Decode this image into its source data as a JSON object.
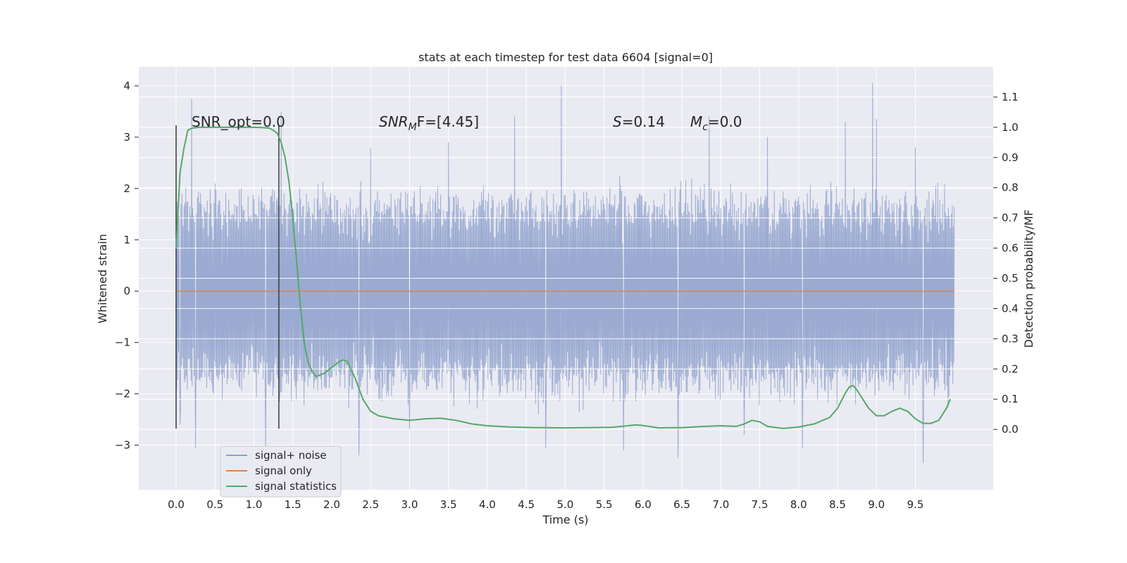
{
  "chart_data": {
    "type": "line",
    "title": "stats at each timestep for test data 6604 [signal=0]",
    "xlabel": "Time (s)",
    "ylabel_left": "Whitened strain",
    "ylabel_right": "Detection probability/MF",
    "xlim": [
      -0.48,
      10.5
    ],
    "ylim_left": [
      -3.87,
      4.37
    ],
    "ylim_right": [
      -0.2,
      1.2
    ],
    "x_ticks": [
      "0.0",
      "0.5",
      "1.0",
      "1.5",
      "2.0",
      "2.5",
      "3.0",
      "3.5",
      "4.0",
      "4.5",
      "5.0",
      "5.5",
      "6.0",
      "6.5",
      "7.0",
      "7.5",
      "8.0",
      "8.5",
      "9.0",
      "9.5"
    ],
    "y_ticks_left": [
      "−3",
      "−2",
      "−1",
      "0",
      "1",
      "2",
      "3",
      "4"
    ],
    "y_ticks_right": [
      "0.0",
      "0.1",
      "0.2",
      "0.3",
      "0.4",
      "0.5",
      "0.6",
      "0.7",
      "0.8",
      "0.9",
      "1.0",
      "1.1"
    ],
    "grid": true,
    "legend_position": "lower-left",
    "colors": {
      "background": "#eaeaf2",
      "grid": "#ffffff",
      "noise": "#8c9fcb",
      "signal_only": "#dd8452",
      "statistics": "#55a868",
      "marker": "#3a3a3a"
    },
    "annotations": {
      "snr_opt": "SNR_opt=0.0",
      "snr_mf_prefix": "SNR",
      "snr_mf_sub": "M",
      "snr_mf_suffix": "F=[4.45]",
      "s_prefix": "S",
      "s_value": "=0.14",
      "mc_prefix": "M",
      "mc_sub": "c",
      "mc_value": "=0.0"
    },
    "noise_envelope": {
      "x": [
        0.0,
        10.0
      ],
      "band": [
        -1.5,
        1.45
      ],
      "upper_spikes": [
        [
          0.2,
          3.75
        ],
        [
          1.35,
          3.5
        ],
        [
          4.95,
          4.0
        ],
        [
          8.95,
          4.05
        ],
        [
          4.35,
          3.4
        ],
        [
          6.85,
          3.4
        ],
        [
          8.6,
          3.3
        ],
        [
          9.0,
          3.35
        ],
        [
          0.5,
          2.1
        ],
        [
          2.5,
          2.8
        ],
        [
          3.5,
          2.9
        ],
        [
          7.6,
          3.0
        ],
        [
          9.5,
          2.8
        ]
      ],
      "lower_spikes": [
        [
          0.25,
          -3.05
        ],
        [
          1.15,
          -3.1
        ],
        [
          2.35,
          -3.2
        ],
        [
          4.75,
          -3.05
        ],
        [
          5.75,
          -3.1
        ],
        [
          6.45,
          -3.25
        ],
        [
          8.05,
          -3.05
        ],
        [
          9.6,
          -3.35
        ],
        [
          3.0,
          -2.7
        ],
        [
          7.3,
          -2.8
        ],
        [
          0.05,
          -2.6
        ]
      ]
    },
    "series": [
      {
        "name": "signal+ noise",
        "x": [
          0.0,
          10.0
        ],
        "y": [
          0.0,
          0.0
        ]
      },
      {
        "name": "signal only",
        "x": [
          0.0,
          10.0
        ],
        "y": [
          0.0,
          0.0
        ]
      },
      {
        "name": "signal statistics",
        "axis": "right",
        "x": [
          0.0,
          0.05,
          0.1,
          0.15,
          0.2,
          0.3,
          0.5,
          0.8,
          1.0,
          1.1,
          1.2,
          1.25,
          1.3,
          1.35,
          1.4,
          1.45,
          1.5,
          1.55,
          1.6,
          1.65,
          1.7,
          1.75,
          1.8,
          1.9,
          2.0,
          2.1,
          2.15,
          2.2,
          2.3,
          2.4,
          2.5,
          2.6,
          2.8,
          3.0,
          3.2,
          3.4,
          3.6,
          3.8,
          4.0,
          4.3,
          4.6,
          5.0,
          5.3,
          5.6,
          5.8,
          5.9,
          6.0,
          6.2,
          6.5,
          6.8,
          7.0,
          7.2,
          7.3,
          7.4,
          7.5,
          7.6,
          7.8,
          8.0,
          8.2,
          8.4,
          8.5,
          8.6,
          8.65,
          8.7,
          8.75,
          8.8,
          8.9,
          9.0,
          9.1,
          9.2,
          9.3,
          9.4,
          9.5,
          9.6,
          9.7,
          9.8,
          9.9,
          9.95
        ],
        "y": [
          0.6,
          0.85,
          0.93,
          0.99,
          0.997,
          1.0,
          1.0,
          1.0,
          1.0,
          0.999,
          0.997,
          0.99,
          0.98,
          0.95,
          0.9,
          0.82,
          0.7,
          0.55,
          0.4,
          0.28,
          0.22,
          0.19,
          0.175,
          0.185,
          0.205,
          0.225,
          0.23,
          0.225,
          0.17,
          0.1,
          0.06,
          0.045,
          0.035,
          0.03,
          0.035,
          0.037,
          0.03,
          0.018,
          0.012,
          0.008,
          0.006,
          0.005,
          0.006,
          0.007,
          0.012,
          0.015,
          0.013,
          0.005,
          0.006,
          0.01,
          0.012,
          0.01,
          0.018,
          0.03,
          0.025,
          0.01,
          0.003,
          0.008,
          0.018,
          0.04,
          0.07,
          0.12,
          0.14,
          0.145,
          0.13,
          0.11,
          0.07,
          0.045,
          0.045,
          0.06,
          0.07,
          0.06,
          0.035,
          0.02,
          0.02,
          0.03,
          0.07,
          0.1
        ]
      }
    ],
    "markers": [
      {
        "x": 0.0,
        "y_top": 3.23,
        "y_bottom": -2.68
      },
      {
        "x": 1.32,
        "y_top": 3.23,
        "y_bottom": -2.68
      }
    ]
  }
}
